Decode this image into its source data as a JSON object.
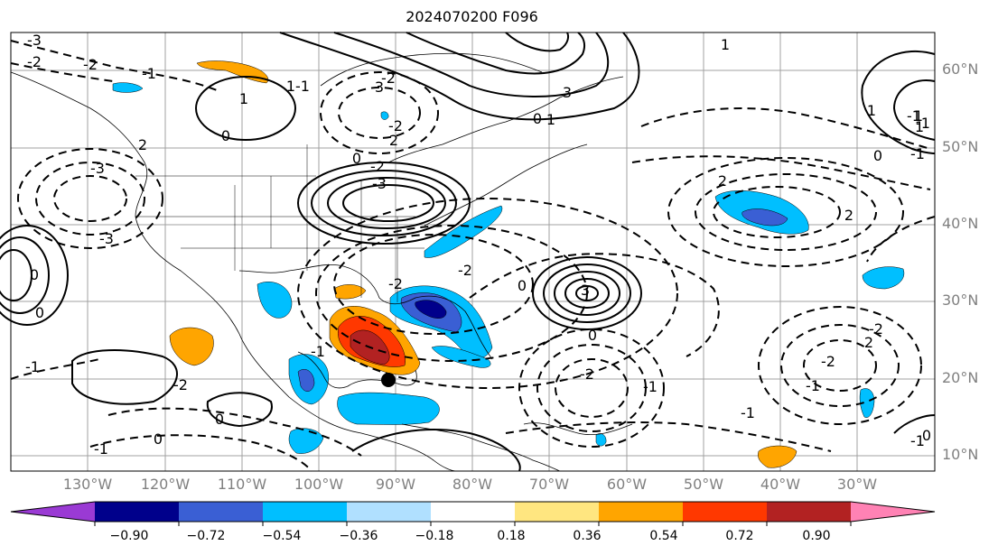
{
  "title": "2024070200 F096",
  "map": {
    "lat_labels": [
      "60°N",
      "50°N",
      "40°N",
      "30°N",
      "20°N",
      "10°N"
    ],
    "lon_labels": [
      "130°W",
      "120°W",
      "110°W",
      "100°W",
      "90°W",
      "80°W",
      "70°W",
      "60°W",
      "50°W",
      "40°W",
      "30°W"
    ],
    "contour_labels": [
      "-3",
      "-2",
      "-2",
      "-1",
      "-1",
      "0",
      "1",
      "-3",
      "-2",
      "-2",
      "-1",
      "1",
      "-2",
      "3",
      "-3",
      "0",
      "2",
      "2",
      "-3",
      "3",
      "-2",
      "0",
      "-2",
      "3",
      "0",
      "-2",
      "-1",
      "0",
      "1",
      "2",
      "2",
      "-2",
      "-2",
      "-1",
      "1",
      "-1",
      "0",
      "-1",
      "1",
      "-1",
      "0",
      "-1",
      "-2",
      "0",
      "-1",
      "-1",
      "0",
      "0",
      "1",
      "-1",
      "1",
      "2",
      "0"
    ]
  },
  "colorbar": {
    "colors": [
      "#9a3ad4",
      "#00008b",
      "#3a5fd4",
      "#00bfff",
      "#b0e0ff",
      "#ffffff",
      "#ffe680",
      "#ffa500",
      "#ff3800",
      "#b22222",
      "#ff82b4"
    ],
    "labels": [
      "−0.90",
      "−0.72",
      "−0.54",
      "−0.36",
      "−0.18",
      "0.18",
      "0.36",
      "0.54",
      "0.72",
      "0.90"
    ]
  }
}
